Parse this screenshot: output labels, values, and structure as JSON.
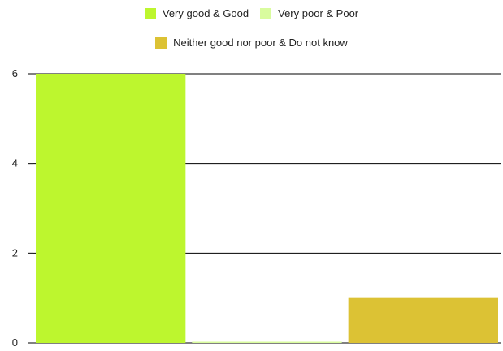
{
  "chart_data": {
    "type": "bar",
    "categories": [
      "Very good & Good",
      "Very poor & Poor",
      "Neither good nor poor & Do not know"
    ],
    "series": [
      {
        "name": "Very good & Good",
        "value": 6,
        "color": "#bdf62e"
      },
      {
        "name": "Very poor & Poor",
        "value": 0,
        "color": "#d9fc9e"
      },
      {
        "name": "Neither good nor poor & Do not know",
        "value": 1,
        "color": "#dcc234"
      }
    ],
    "ylim": [
      0,
      6
    ],
    "yticks": [
      "0",
      "2",
      "4",
      "6"
    ],
    "ytick_values": [
      0,
      2,
      4,
      6
    ],
    "grid": true,
    "legend_position": "top-center"
  }
}
